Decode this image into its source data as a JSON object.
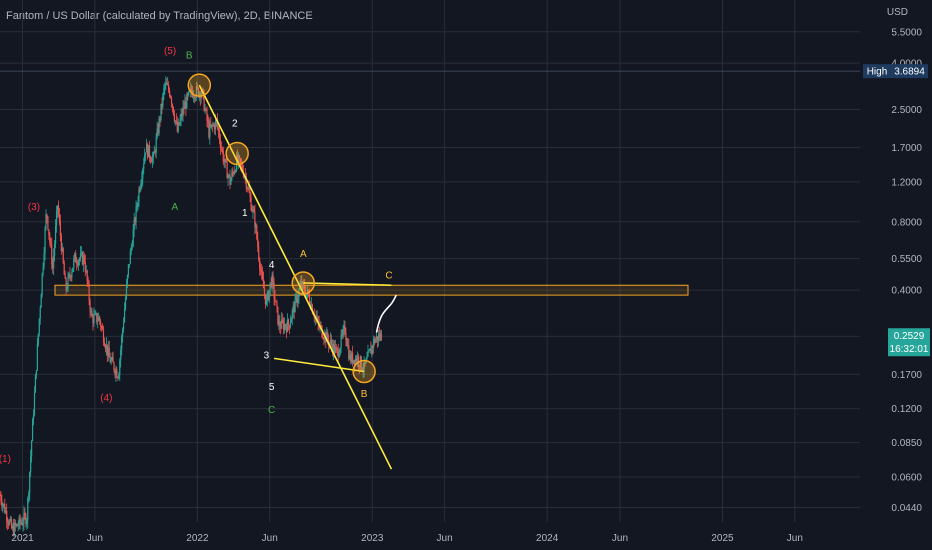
{
  "title": "Fantom / US Dollar (calculated by TradingView), 2D, BINANCE",
  "chart_data": {
    "type": "candlestick",
    "currency_label": "USD",
    "y_scale": "log",
    "ylim": [
      0.038,
      6.2
    ],
    "xlim": [
      "2020-11-15",
      "2025-10-15"
    ],
    "y_ticks": [
      {
        "value": 5.5,
        "label": "5.5000"
      },
      {
        "value": 4.0,
        "label": "4.0000"
      },
      {
        "value": 2.5,
        "label": "2.5000"
      },
      {
        "value": 1.7,
        "label": "1.7000"
      },
      {
        "value": 1.2,
        "label": "1.2000"
      },
      {
        "value": 0.8,
        "label": "0.8000"
      },
      {
        "value": 0.55,
        "label": "0.5500"
      },
      {
        "value": 0.4,
        "label": "0.4000"
      },
      {
        "value": 0.25,
        "label": "0.2500"
      },
      {
        "value": 0.17,
        "label": "0.1700"
      },
      {
        "value": 0.12,
        "label": "0.1200"
      },
      {
        "value": 0.085,
        "label": "0.0850"
      },
      {
        "value": 0.06,
        "label": "0.0600"
      },
      {
        "value": 0.044,
        "label": "0.0440"
      }
    ],
    "x_ticks": [
      {
        "date": "2021-01-01",
        "label": "2021"
      },
      {
        "date": "2021-06-01",
        "label": "Jun"
      },
      {
        "date": "2022-01-01",
        "label": "2022"
      },
      {
        "date": "2022-06-01",
        "label": "Jun"
      },
      {
        "date": "2023-01-01",
        "label": "2023"
      },
      {
        "date": "2023-06-01",
        "label": "Jun"
      },
      {
        "date": "2024-01-01",
        "label": "2024"
      },
      {
        "date": "2024-06-01",
        "label": "Jun"
      },
      {
        "date": "2025-01-01",
        "label": "2025"
      },
      {
        "date": "2025-06-01",
        "label": "Jun"
      }
    ],
    "high": {
      "label": "High",
      "value": 3.6894,
      "value_label": "3.6894"
    },
    "last": {
      "value": 0.2529,
      "value_label": "0.2529",
      "countdown": "16:32:01"
    },
    "price_path": [
      [
        "2020-11-15",
        0.05
      ],
      [
        "2020-12-10",
        0.035
      ],
      [
        "2021-01-10",
        0.04
      ],
      [
        "2021-02-05",
        0.3
      ],
      [
        "2021-02-20",
        0.9
      ],
      [
        "2021-03-05",
        0.5
      ],
      [
        "2021-03-15",
        0.95
      ],
      [
        "2021-04-01",
        0.4
      ],
      [
        "2021-04-20",
        0.55
      ],
      [
        "2021-05-10",
        0.55
      ],
      [
        "2021-05-25",
        0.3
      ],
      [
        "2021-06-10",
        0.3
      ],
      [
        "2021-07-01",
        0.2
      ],
      [
        "2021-07-20",
        0.17
      ],
      [
        "2021-08-10",
        0.5
      ],
      [
        "2021-09-01",
        1.1
      ],
      [
        "2021-09-15",
        1.7
      ],
      [
        "2021-10-01",
        1.5
      ],
      [
        "2021-10-25",
        3.2
      ],
      [
        "2021-11-05",
        3.0
      ],
      [
        "2021-11-20",
        2.0
      ],
      [
        "2021-12-05",
        2.6
      ],
      [
        "2021-12-20",
        3.0
      ],
      [
        "2022-01-10",
        3.0
      ],
      [
        "2022-01-25",
        2.0
      ],
      [
        "2022-02-10",
        2.2
      ],
      [
        "2022-02-25",
        1.5
      ],
      [
        "2022-03-10",
        1.2
      ],
      [
        "2022-03-25",
        1.5
      ],
      [
        "2022-04-10",
        1.3
      ],
      [
        "2022-05-01",
        0.8
      ],
      [
        "2022-05-15",
        0.45
      ],
      [
        "2022-05-25",
        0.35
      ],
      [
        "2022-06-05",
        0.45
      ],
      [
        "2022-06-20",
        0.28
      ],
      [
        "2022-07-10",
        0.28
      ],
      [
        "2022-08-05",
        0.42
      ],
      [
        "2022-08-20",
        0.38
      ],
      [
        "2022-09-10",
        0.28
      ],
      [
        "2022-10-01",
        0.24
      ],
      [
        "2022-10-20",
        0.21
      ],
      [
        "2022-11-05",
        0.27
      ],
      [
        "2022-11-15",
        0.2
      ],
      [
        "2022-12-01",
        0.2
      ],
      [
        "2022-12-15",
        0.18
      ],
      [
        "2023-01-05",
        0.24
      ],
      [
        "2023-01-20",
        0.2529
      ]
    ],
    "horizontal_zone": {
      "from": 0.38,
      "to": 0.42
    },
    "trend_lines": [
      {
        "from": [
          "2022-01-05",
          3.2
        ],
        "to": [
          "2023-02-10",
          0.065
        ]
      },
      {
        "from": [
          "2022-08-10",
          0.43
        ],
        "to": [
          "2023-02-10",
          0.42
        ]
      },
      {
        "from": [
          "2022-06-10",
          0.2
        ],
        "to": [
          "2022-12-15",
          0.175
        ]
      }
    ],
    "circles": [
      {
        "at": [
          "2022-01-05",
          3.2
        ]
      },
      {
        "at": [
          "2022-03-25",
          1.6
        ]
      },
      {
        "at": [
          "2022-08-10",
          0.43
        ]
      },
      {
        "at": [
          "2022-12-15",
          0.175
        ]
      }
    ],
    "projection_path": [
      [
        "2023-01-10",
        0.26
      ],
      [
        "2023-01-20",
        0.34
      ],
      [
        "2023-02-05",
        0.32
      ],
      [
        "2023-02-20",
        0.38
      ]
    ],
    "wave_labels": [
      {
        "text": "(1)",
        "at": [
          "2020-11-25",
          0.07
        ],
        "color": "#f23645"
      },
      {
        "text": "(3)",
        "at": [
          "2021-01-25",
          0.9
        ],
        "color": "#f23645"
      },
      {
        "text": "(4)",
        "at": [
          "2021-06-25",
          0.13
        ],
        "color": "#f23645"
      },
      {
        "text": "(5)",
        "at": [
          "2021-11-05",
          4.4
        ],
        "color": "#f23645"
      },
      {
        "text": "B",
        "at": [
          "2021-12-15",
          4.2
        ],
        "color": "#4caf50"
      },
      {
        "text": "A",
        "at": [
          "2021-11-15",
          0.9
        ],
        "color": "#4caf50"
      },
      {
        "text": "2",
        "at": [
          "2022-03-20",
          2.1
        ],
        "color": "#ffffff"
      },
      {
        "text": "1",
        "at": [
          "2022-04-10",
          0.85
        ],
        "color": "#ffffff"
      },
      {
        "text": "4",
        "at": [
          "2022-06-05",
          0.5
        ],
        "color": "#ffffff"
      },
      {
        "text": "3",
        "at": [
          "2022-05-25",
          0.2
        ],
        "color": "#ffffff"
      },
      {
        "text": "5",
        "at": [
          "2022-06-05",
          0.145
        ],
        "color": "#ffffff"
      },
      {
        "text": "C",
        "at": [
          "2022-06-05",
          0.115
        ],
        "color": "#4caf50"
      },
      {
        "text": "A",
        "at": [
          "2022-08-10",
          0.56
        ],
        "color": "#fbc02d"
      },
      {
        "text": "C",
        "at": [
          "2023-02-05",
          0.45
        ],
        "color": "#fbc02d"
      },
      {
        "text": "B",
        "at": [
          "2022-12-15",
          0.135
        ],
        "color": "#fbc02d"
      }
    ],
    "colors": {
      "background": "#131722",
      "grid": "#2a2e39",
      "up": "#26a69a",
      "down": "#ef5350",
      "trendline": "#ffeb3b",
      "circle_stroke": "#f5a623",
      "zone": "#f5a623",
      "projection": "#ffffff",
      "last_badge": "#26a69a",
      "high_badge": "#1e3a5f"
    }
  }
}
